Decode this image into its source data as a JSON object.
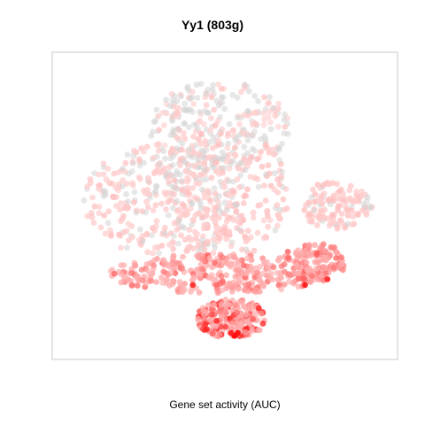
{
  "chart_data": {
    "type": "scatter",
    "title": "Yy1 (803g)",
    "xlabel": "Gene set activity (AUC)",
    "ylabel": "",
    "grid": false,
    "legend": "none",
    "xlim": [
      0,
      100
    ],
    "ylim": [
      0,
      100
    ],
    "colors": {
      "no_activity": "#d3d3d3",
      "low": "#ffd6d6",
      "mid": "#ff9a9a",
      "high": "#ff0000",
      "frame": "#c8c8c8"
    },
    "regions": [
      {
        "name": "upper gray cluster",
        "cx": 48,
        "cy": 78,
        "rx": 22,
        "ry": 16,
        "n": 260,
        "activity": [
          0.0,
          0.15
        ],
        "gray": 0.6
      },
      {
        "name": "main left body",
        "cx": 30,
        "cy": 52,
        "rx": 24,
        "ry": 20,
        "n": 300,
        "activity": [
          0.05,
          0.2
        ],
        "gray": 0.25
      },
      {
        "name": "center body",
        "cx": 50,
        "cy": 55,
        "rx": 20,
        "ry": 24,
        "n": 280,
        "activity": [
          0.05,
          0.22
        ],
        "gray": 0.3
      },
      {
        "name": "right appendage",
        "cx": 85,
        "cy": 50,
        "rx": 11,
        "ry": 9,
        "n": 120,
        "activity": [
          0.08,
          0.22
        ],
        "gray": 0.1
      },
      {
        "name": "lower band",
        "cx": 48,
        "cy": 26,
        "rx": 34,
        "ry": 7,
        "n": 320,
        "activity": [
          0.25,
          0.7
        ],
        "gray": 0.0
      },
      {
        "name": "right lower cluster",
        "cx": 78,
        "cy": 30,
        "rx": 10,
        "ry": 7,
        "n": 140,
        "activity": [
          0.3,
          0.75
        ],
        "gray": 0.0
      },
      {
        "name": "bottom lobe",
        "cx": 52,
        "cy": 10,
        "rx": 11,
        "ry": 7,
        "n": 200,
        "activity": [
          0.3,
          0.95
        ],
        "gray": 0.0
      }
    ],
    "peak_points": [
      {
        "x": 53,
        "y": 4,
        "activity": 1.0
      },
      {
        "x": 54,
        "y": 5,
        "activity": 0.95
      },
      {
        "x": 52,
        "y": 5,
        "activity": 0.9
      },
      {
        "x": 75,
        "y": 22,
        "activity": 0.9
      },
      {
        "x": 82,
        "y": 24,
        "activity": 0.85
      },
      {
        "x": 40,
        "y": 22,
        "activity": 0.85
      }
    ]
  }
}
